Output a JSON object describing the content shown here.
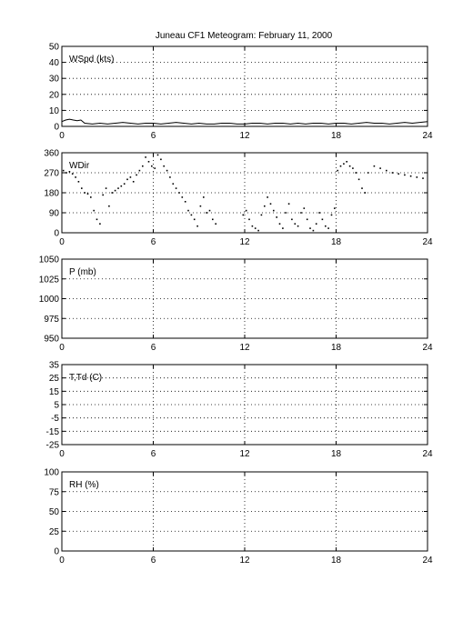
{
  "figure_title": "Juneau CF1 Meteogram:  February 11, 2000",
  "chart_data": [
    {
      "type": "line",
      "panel_label": "WSpd (kts)",
      "xlim": [
        0,
        24
      ],
      "xticks": [
        "0",
        "6",
        "12",
        "18",
        "24"
      ],
      "ylim": [
        0,
        50
      ],
      "yticks": [
        "0",
        "10",
        "20",
        "30",
        "40",
        "50"
      ],
      "grid": true,
      "x": [
        0,
        0.25,
        0.5,
        0.75,
        1,
        1.25,
        1.5,
        2,
        2.5,
        3,
        3.5,
        4,
        4.5,
        5,
        5.5,
        6,
        6.5,
        7,
        7.5,
        8,
        8.5,
        9,
        9.5,
        10,
        10.5,
        11,
        11.5,
        12,
        12.5,
        13,
        13.5,
        14,
        14.5,
        15,
        15.5,
        16,
        16.5,
        17,
        17.5,
        18,
        18.5,
        19,
        19.5,
        20,
        20.5,
        21,
        21.5,
        22,
        22.5,
        23,
        23.5,
        24
      ],
      "values": [
        3,
        4,
        4.5,
        4,
        3.5,
        4,
        2,
        1.5,
        2,
        1.5,
        2,
        2.5,
        2,
        1.5,
        2,
        2,
        1.5,
        2,
        2.5,
        2,
        1.5,
        2,
        1.5,
        1.5,
        2,
        2,
        1.5,
        1.5,
        2,
        2,
        1.5,
        2,
        2,
        1.5,
        2,
        1.5,
        2,
        2,
        1.5,
        2,
        2,
        1.5,
        2,
        2.5,
        2,
        2,
        1.5,
        2,
        2.5,
        2,
        2.5,
        3
      ]
    },
    {
      "type": "scatter",
      "panel_label": "WDir",
      "xlim": [
        0,
        24
      ],
      "xticks": [
        "0",
        "6",
        "12",
        "18",
        "24"
      ],
      "ylim": [
        0,
        360
      ],
      "yticks": [
        "0",
        "90",
        "180",
        "270",
        "360"
      ],
      "grid": true,
      "x": [
        0.1,
        0.3,
        0.5,
        0.7,
        0.9,
        1.1,
        1.3,
        1.5,
        1.7,
        1.9,
        2.1,
        2.3,
        2.5,
        2.7,
        2.9,
        3.1,
        3.3,
        3.5,
        3.7,
        3.9,
        4.1,
        4.3,
        4.5,
        4.7,
        4.9,
        5.1,
        5.3,
        5.5,
        5.7,
        5.9,
        6.1,
        6.3,
        6.5,
        6.7,
        6.9,
        7.1,
        7.3,
        7.5,
        7.7,
        7.9,
        8.1,
        8.3,
        8.5,
        8.7,
        8.9,
        9.1,
        9.3,
        9.5,
        9.7,
        9.9,
        10.1,
        11.9,
        12.1,
        12.3,
        12.5,
        12.7,
        12.9,
        13.1,
        13.3,
        13.5,
        13.7,
        13.9,
        14.1,
        14.3,
        14.5,
        14.7,
        14.9,
        15.1,
        15.3,
        15.5,
        15.7,
        15.9,
        16.1,
        16.3,
        16.5,
        16.7,
        16.9,
        17.1,
        17.3,
        17.5,
        17.7,
        17.9,
        18.1,
        18.3,
        18.5,
        18.7,
        18.9,
        19.1,
        19.3,
        19.5,
        19.7,
        19.9,
        20.1,
        20.5,
        20.9,
        21.3,
        21.7,
        22.1,
        22.5,
        22.9,
        23.3,
        23.7
      ],
      "values": [
        280,
        270,
        275,
        265,
        250,
        230,
        200,
        180,
        175,
        160,
        100,
        60,
        40,
        170,
        200,
        120,
        180,
        190,
        200,
        210,
        220,
        240,
        250,
        230,
        260,
        280,
        300,
        340,
        320,
        300,
        290,
        350,
        330,
        300,
        280,
        250,
        220,
        200,
        180,
        160,
        140,
        100,
        80,
        60,
        30,
        120,
        160,
        90,
        100,
        60,
        40,
        80,
        100,
        60,
        30,
        20,
        10,
        80,
        120,
        160,
        130,
        100,
        70,
        40,
        20,
        90,
        130,
        60,
        40,
        30,
        90,
        110,
        60,
        20,
        10,
        40,
        90,
        60,
        30,
        20,
        80,
        110,
        280,
        300,
        310,
        320,
        300,
        290,
        270,
        240,
        200,
        180,
        270,
        300,
        290,
        280,
        270,
        265,
        260,
        255,
        250,
        245
      ]
    },
    {
      "type": "line",
      "panel_label": "P (mb)",
      "xlim": [
        0,
        24
      ],
      "xticks": [
        "0",
        "6",
        "12",
        "18",
        "24"
      ],
      "ylim": [
        950,
        1050
      ],
      "yticks": [
        "950",
        "975",
        "1000",
        "1025",
        "1050"
      ],
      "grid": true,
      "x": [],
      "values": []
    },
    {
      "type": "line",
      "panel_label": "T,Td (C)",
      "xlim": [
        0,
        24
      ],
      "xticks": [
        "0",
        "6",
        "12",
        "18",
        "24"
      ],
      "ylim": [
        -25,
        35
      ],
      "yticks": [
        "-25",
        "-15",
        "-5",
        "5",
        "15",
        "25",
        "35"
      ],
      "grid": true,
      "x": [],
      "values": []
    },
    {
      "type": "line",
      "panel_label": "RH (%)",
      "xlim": [
        0,
        24
      ],
      "xticks": [
        "0",
        "6",
        "12",
        "18",
        "24"
      ],
      "ylim": [
        0,
        100
      ],
      "yticks": [
        "0",
        "25",
        "50",
        "75",
        "100"
      ],
      "grid": true,
      "x": [],
      "values": []
    }
  ]
}
